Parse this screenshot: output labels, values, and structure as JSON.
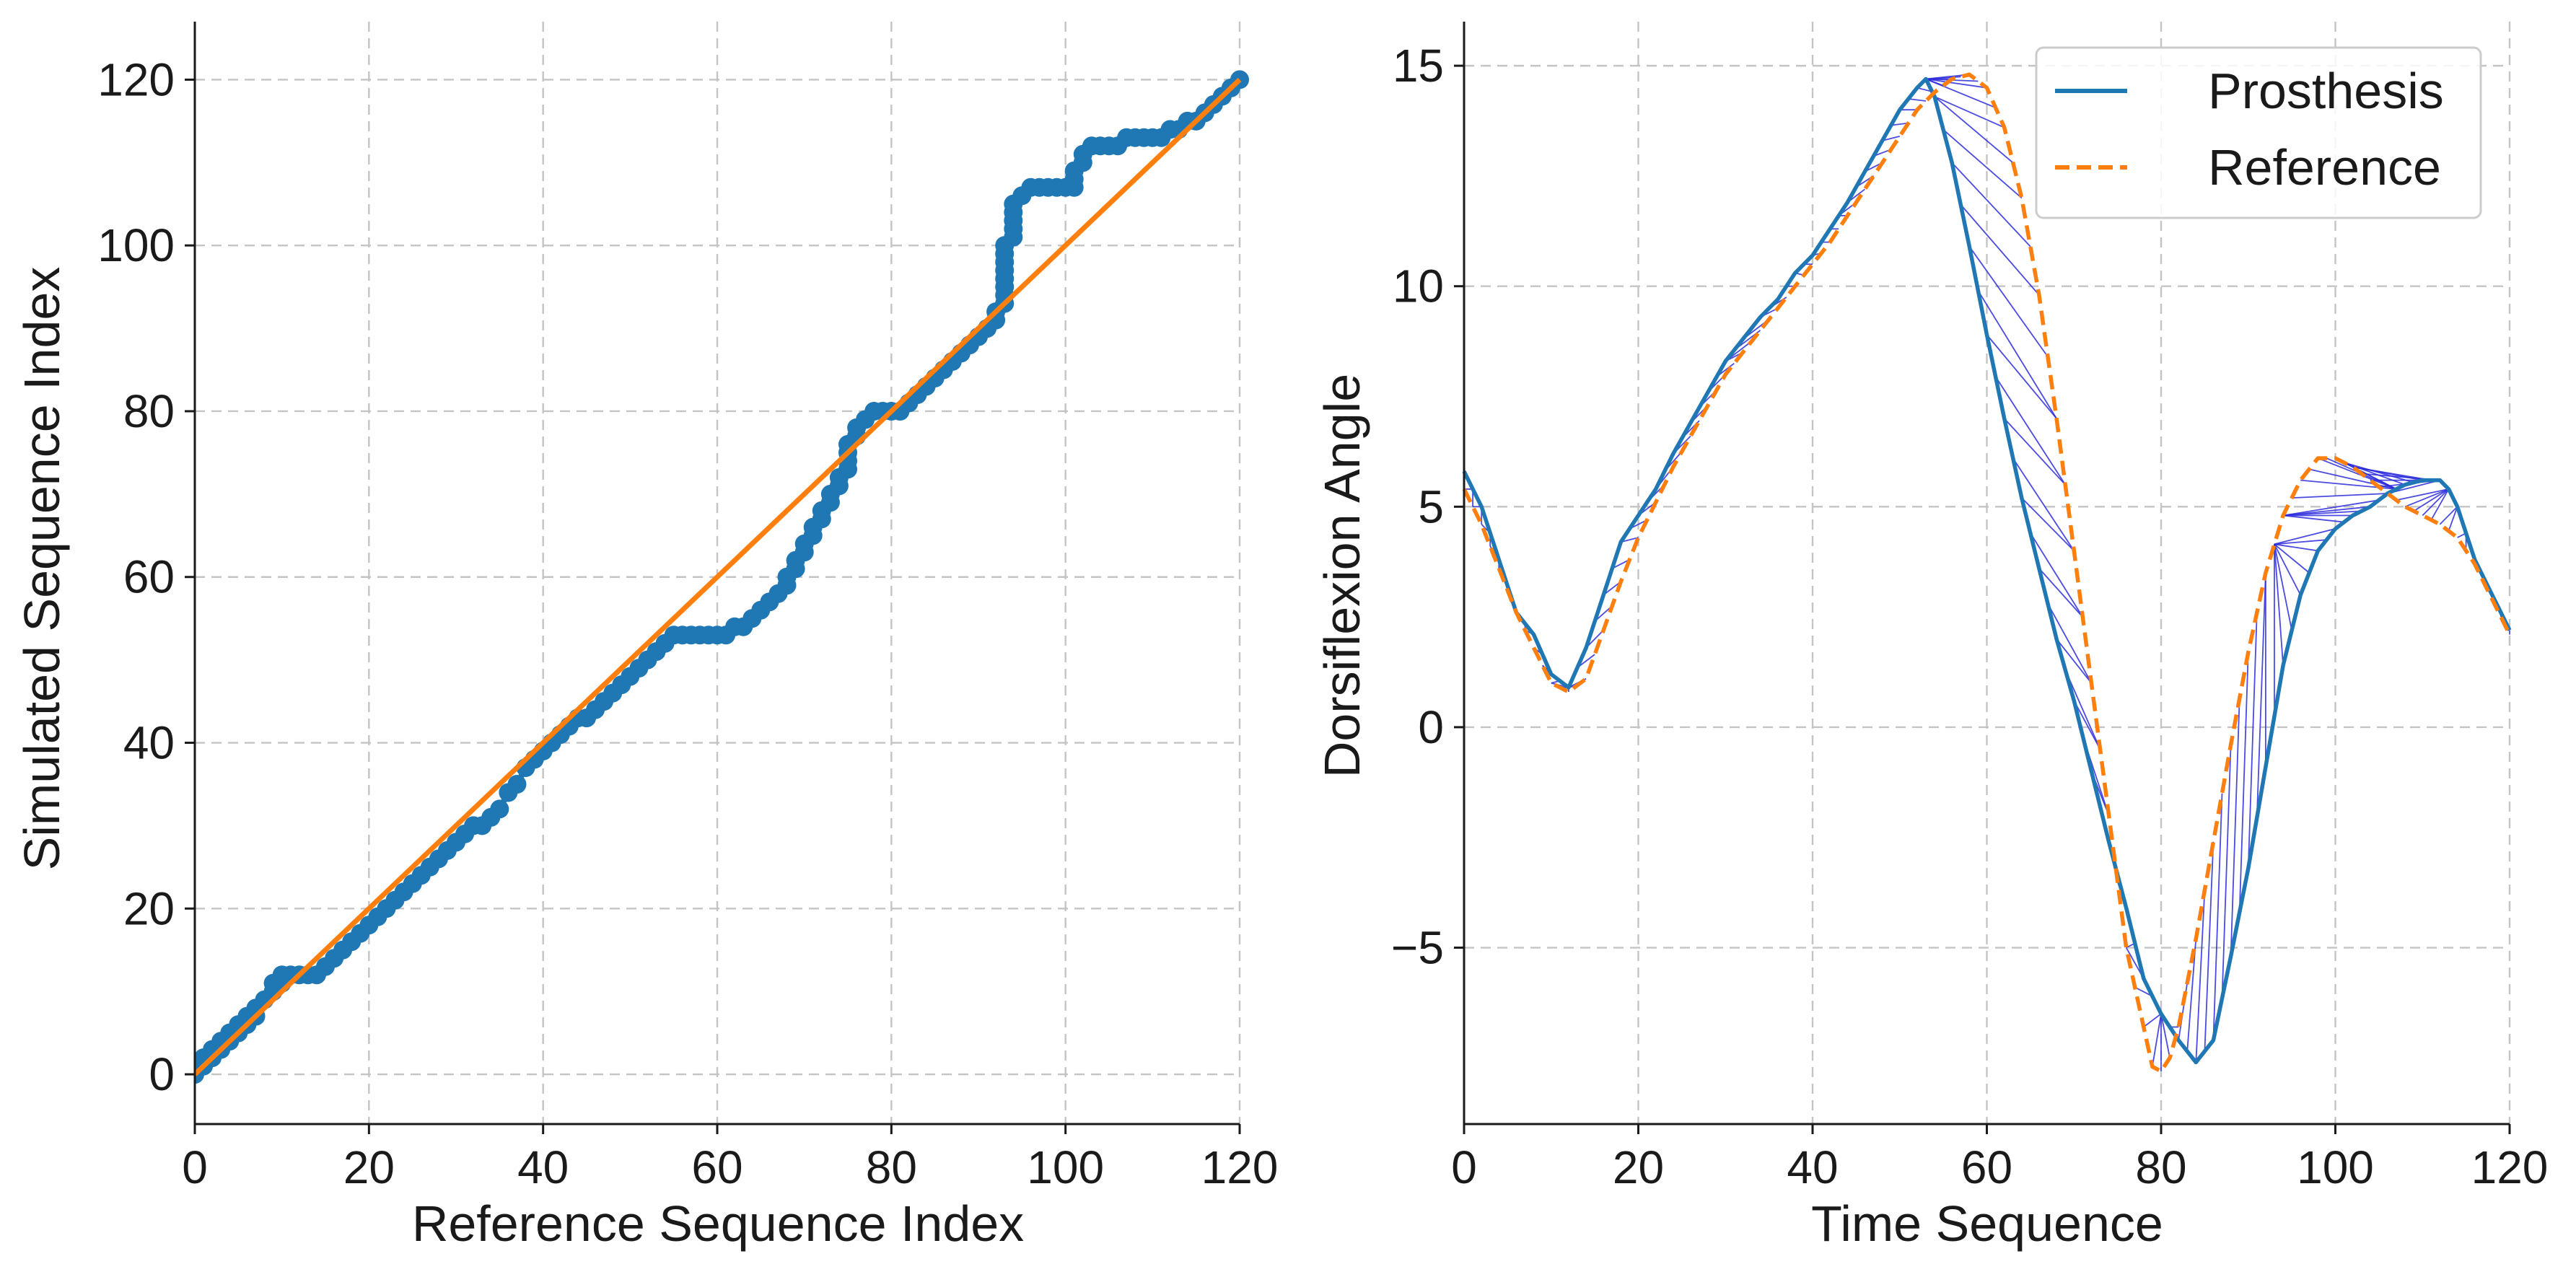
{
  "chart_data": [
    {
      "type": "scatter",
      "xlabel": "Reference Sequence Index",
      "ylabel": "Simulated Sequence Index",
      "xlim": [
        0,
        120
      ],
      "ylim": [
        -6,
        127
      ],
      "xticks": [
        0,
        20,
        40,
        60,
        80,
        100,
        120
      ],
      "yticks": [
        0,
        20,
        40,
        60,
        80,
        100,
        120
      ],
      "grid": true,
      "colors": {
        "path": "#1f77b4",
        "diagonal": "#ff7f0e"
      },
      "warping_path": [
        [
          0,
          0
        ],
        [
          0,
          1
        ],
        [
          1,
          1
        ],
        [
          1,
          2
        ],
        [
          2,
          2
        ],
        [
          2,
          3
        ],
        [
          3,
          3
        ],
        [
          3,
          4
        ],
        [
          4,
          4
        ],
        [
          4,
          5
        ],
        [
          5,
          5
        ],
        [
          5,
          6
        ],
        [
          6,
          6
        ],
        [
          6,
          7
        ],
        [
          7,
          7
        ],
        [
          7,
          8
        ],
        [
          8,
          9
        ],
        [
          9,
          10
        ],
        [
          9,
          11
        ],
        [
          10,
          11
        ],
        [
          10,
          12
        ],
        [
          11,
          12
        ],
        [
          12,
          12
        ],
        [
          13,
          12
        ],
        [
          14,
          12
        ],
        [
          15,
          13
        ],
        [
          16,
          14
        ],
        [
          17,
          15
        ],
        [
          18,
          16
        ],
        [
          19,
          17
        ],
        [
          20,
          18
        ],
        [
          21,
          19
        ],
        [
          22,
          20
        ],
        [
          23,
          21
        ],
        [
          24,
          22
        ],
        [
          25,
          23
        ],
        [
          26,
          24
        ],
        [
          27,
          25
        ],
        [
          28,
          26
        ],
        [
          29,
          27
        ],
        [
          30,
          28
        ],
        [
          31,
          29
        ],
        [
          32,
          30
        ],
        [
          33,
          30
        ],
        [
          34,
          31
        ],
        [
          35,
          32
        ],
        [
          36,
          34
        ],
        [
          37,
          35
        ],
        [
          38,
          37
        ],
        [
          39,
          38
        ],
        [
          40,
          39
        ],
        [
          41,
          40
        ],
        [
          42,
          41
        ],
        [
          43,
          42
        ],
        [
          44,
          43
        ],
        [
          45,
          43
        ],
        [
          46,
          44
        ],
        [
          47,
          45
        ],
        [
          48,
          46
        ],
        [
          49,
          47
        ],
        [
          50,
          48
        ],
        [
          51,
          49
        ],
        [
          52,
          50
        ],
        [
          53,
          51
        ],
        [
          54,
          52
        ],
        [
          55,
          53
        ],
        [
          56,
          53
        ],
        [
          57,
          53
        ],
        [
          58,
          53
        ],
        [
          59,
          53
        ],
        [
          60,
          53
        ],
        [
          61,
          53
        ],
        [
          62,
          54
        ],
        [
          63,
          54
        ],
        [
          64,
          55
        ],
        [
          65,
          56
        ],
        [
          66,
          57
        ],
        [
          67,
          58
        ],
        [
          68,
          59
        ],
        [
          68,
          60
        ],
        [
          69,
          61
        ],
        [
          69,
          62
        ],
        [
          70,
          63
        ],
        [
          70,
          64
        ],
        [
          71,
          65
        ],
        [
          71,
          66
        ],
        [
          72,
          67
        ],
        [
          72,
          68
        ],
        [
          73,
          69
        ],
        [
          73,
          70
        ],
        [
          74,
          71
        ],
        [
          74,
          72
        ],
        [
          75,
          73
        ],
        [
          75,
          74
        ],
        [
          75,
          75
        ],
        [
          75,
          76
        ],
        [
          76,
          77
        ],
        [
          76,
          78
        ],
        [
          77,
          79
        ],
        [
          78,
          80
        ],
        [
          79,
          80
        ],
        [
          80,
          80
        ],
        [
          81,
          80
        ],
        [
          82,
          81
        ],
        [
          83,
          82
        ],
        [
          84,
          83
        ],
        [
          85,
          84
        ],
        [
          86,
          85
        ],
        [
          87,
          86
        ],
        [
          88,
          87
        ],
        [
          89,
          88
        ],
        [
          90,
          89
        ],
        [
          91,
          90
        ],
        [
          92,
          91
        ],
        [
          92,
          92
        ],
        [
          93,
          93
        ],
        [
          93,
          94
        ],
        [
          93,
          95
        ],
        [
          93,
          96
        ],
        [
          93,
          97
        ],
        [
          93,
          98
        ],
        [
          93,
          99
        ],
        [
          93,
          100
        ],
        [
          94,
          101
        ],
        [
          94,
          102
        ],
        [
          94,
          103
        ],
        [
          94,
          104
        ],
        [
          94,
          105
        ],
        [
          95,
          106
        ],
        [
          96,
          107
        ],
        [
          97,
          107
        ],
        [
          98,
          107
        ],
        [
          99,
          107
        ],
        [
          100,
          107
        ],
        [
          101,
          107
        ],
        [
          101,
          108
        ],
        [
          101,
          109
        ],
        [
          102,
          110
        ],
        [
          102,
          111
        ],
        [
          103,
          112
        ],
        [
          104,
          112
        ],
        [
          105,
          112
        ],
        [
          106,
          112
        ],
        [
          107,
          113
        ],
        [
          108,
          113
        ],
        [
          109,
          113
        ],
        [
          110,
          113
        ],
        [
          111,
          113
        ],
        [
          112,
          114
        ],
        [
          113,
          114
        ],
        [
          114,
          115
        ],
        [
          115,
          115
        ],
        [
          116,
          116
        ],
        [
          117,
          117
        ],
        [
          118,
          118
        ],
        [
          119,
          119
        ],
        [
          120,
          120
        ]
      ],
      "diagonal": [
        [
          0,
          0
        ],
        [
          120,
          120
        ]
      ]
    },
    {
      "type": "line",
      "xlabel": "Time Sequence",
      "ylabel": "Dorsiflexion Angle",
      "xlim": [
        0,
        120
      ],
      "ylim": [
        -9,
        16
      ],
      "xticks": [
        0,
        20,
        40,
        60,
        80,
        100,
        120
      ],
      "yticks": [
        -5,
        0,
        5,
        10,
        15
      ],
      "ytick_labels": [
        "−5",
        "0",
        "5",
        "10",
        "15"
      ],
      "grid": true,
      "legend_position": "top-right",
      "alignment_color": "#2b2bdc",
      "series": [
        {
          "name": "Prosthesis",
          "color": "#1f77b4",
          "style": "solid",
          "points": [
            [
              0,
              5.8
            ],
            [
              2,
              5.0
            ],
            [
              4,
              3.8
            ],
            [
              6,
              2.6
            ],
            [
              8,
              2.1
            ],
            [
              10,
              1.2
            ],
            [
              12,
              0.9
            ],
            [
              14,
              1.8
            ],
            [
              16,
              3.0
            ],
            [
              18,
              4.2
            ],
            [
              20,
              4.8
            ],
            [
              22,
              5.4
            ],
            [
              24,
              6.2
            ],
            [
              26,
              6.9
            ],
            [
              28,
              7.6
            ],
            [
              30,
              8.3
            ],
            [
              32,
              8.8
            ],
            [
              34,
              9.3
            ],
            [
              36,
              9.7
            ],
            [
              38,
              10.3
            ],
            [
              40,
              10.7
            ],
            [
              42,
              11.3
            ],
            [
              44,
              11.9
            ],
            [
              46,
              12.6
            ],
            [
              48,
              13.3
            ],
            [
              50,
              14.0
            ],
            [
              52,
              14.5
            ],
            [
              53,
              14.7
            ],
            [
              54,
              14.3
            ],
            [
              56,
              12.8
            ],
            [
              58,
              10.9
            ],
            [
              60,
              8.9
            ],
            [
              62,
              7.0
            ],
            [
              64,
              5.2
            ],
            [
              66,
              3.6
            ],
            [
              68,
              2.0
            ],
            [
              70,
              0.6
            ],
            [
              72,
              -1.0
            ],
            [
              74,
              -2.6
            ],
            [
              76,
              -4.1
            ],
            [
              78,
              -5.7
            ],
            [
              80,
              -6.5
            ],
            [
              82,
              -7.1
            ],
            [
              84,
              -7.6
            ],
            [
              86,
              -7.1
            ],
            [
              88,
              -5.2
            ],
            [
              90,
              -3.2
            ],
            [
              92,
              -0.9
            ],
            [
              94,
              1.4
            ],
            [
              96,
              3.0
            ],
            [
              98,
              4.0
            ],
            [
              100,
              4.5
            ],
            [
              102,
              4.8
            ],
            [
              104,
              5.0
            ],
            [
              106,
              5.3
            ],
            [
              108,
              5.5
            ],
            [
              110,
              5.6
            ],
            [
              112,
              5.6
            ],
            [
              113,
              5.4
            ],
            [
              114,
              5.0
            ],
            [
              115,
              4.4
            ],
            [
              116,
              3.8
            ],
            [
              118,
              3.0
            ],
            [
              120,
              2.2
            ]
          ]
        },
        {
          "name": "Reference",
          "color": "#ff7f0e",
          "style": "dashed",
          "points": [
            [
              0,
              5.4
            ],
            [
              2,
              4.6
            ],
            [
              4,
              3.6
            ],
            [
              6,
              2.6
            ],
            [
              8,
              1.8
            ],
            [
              10,
              1.0
            ],
            [
              12,
              0.8
            ],
            [
              14,
              1.1
            ],
            [
              16,
              2.2
            ],
            [
              18,
              3.3
            ],
            [
              20,
              4.3
            ],
            [
              22,
              5.1
            ],
            [
              24,
              5.9
            ],
            [
              26,
              6.6
            ],
            [
              28,
              7.3
            ],
            [
              30,
              8.0
            ],
            [
              32,
              8.5
            ],
            [
              34,
              9.0
            ],
            [
              36,
              9.5
            ],
            [
              38,
              10.0
            ],
            [
              40,
              10.5
            ],
            [
              42,
              11.0
            ],
            [
              44,
              11.6
            ],
            [
              46,
              12.2
            ],
            [
              48,
              12.8
            ],
            [
              50,
              13.4
            ],
            [
              52,
              14.0
            ],
            [
              54,
              14.4
            ],
            [
              56,
              14.7
            ],
            [
              58,
              14.8
            ],
            [
              60,
              14.5
            ],
            [
              62,
              13.6
            ],
            [
              64,
              12.0
            ],
            [
              66,
              9.8
            ],
            [
              68,
              7.0
            ],
            [
              70,
              4.0
            ],
            [
              72,
              1.0
            ],
            [
              74,
              -2.0
            ],
            [
              76,
              -5.0
            ],
            [
              78,
              -6.8
            ],
            [
              79,
              -7.7
            ],
            [
              80,
              -7.8
            ],
            [
              81,
              -7.5
            ],
            [
              82,
              -6.8
            ],
            [
              84,
              -4.8
            ],
            [
              86,
              -2.6
            ],
            [
              88,
              -0.4
            ],
            [
              90,
              1.7
            ],
            [
              92,
              3.5
            ],
            [
              94,
              4.8
            ],
            [
              96,
              5.6
            ],
            [
              98,
              6.1
            ],
            [
              100,
              6.1
            ],
            [
              102,
              5.9
            ],
            [
              104,
              5.6
            ],
            [
              106,
              5.3
            ],
            [
              108,
              5.0
            ],
            [
              110,
              4.8
            ],
            [
              112,
              4.6
            ],
            [
              114,
              4.3
            ],
            [
              116,
              3.7
            ],
            [
              118,
              2.9
            ],
            [
              120,
              2.1
            ]
          ]
        }
      ]
    }
  ]
}
